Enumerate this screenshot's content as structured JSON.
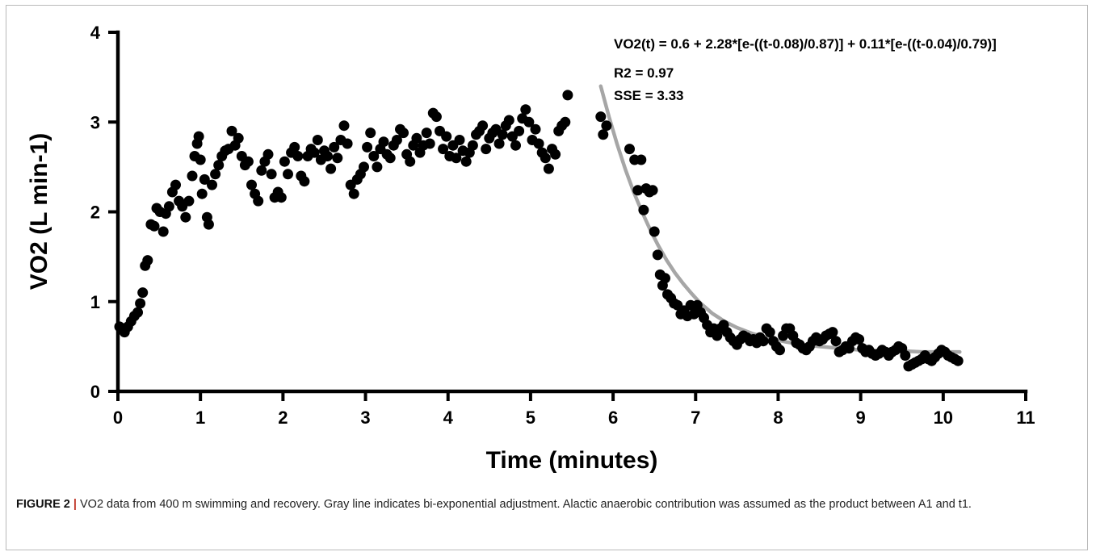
{
  "chart_data": {
    "type": "scatter",
    "title": "",
    "xlabel": "Time (minutes)",
    "ylabel": "VO2 (L min-1)",
    "xlim": [
      0,
      11
    ],
    "ylim": [
      0,
      4
    ],
    "x_ticks": [
      0,
      1,
      2,
      3,
      4,
      5,
      6,
      7,
      8,
      9,
      10,
      11
    ],
    "y_ticks": [
      0,
      1,
      2,
      3,
      4
    ],
    "grid": false,
    "marker_color": "#000000",
    "fit_color": "#a6a6a6",
    "annotation": {
      "equation": "VO2(t) = 0.6 + 2.28*[e-((t-0.08)/0.87)] + 0.11*[e-((t-0.04)/0.79)]",
      "r2": "R2 = 0.97",
      "sse": "SSE = 3.33"
    },
    "series": [
      {
        "type": "scatter",
        "values": [
          [
            0.02,
            0.72
          ],
          [
            0.05,
            0.7
          ],
          [
            0.08,
            0.66
          ],
          [
            0.12,
            0.72
          ],
          [
            0.16,
            0.78
          ],
          [
            0.2,
            0.84
          ],
          [
            0.24,
            0.88
          ],
          [
            0.27,
            0.98
          ],
          [
            0.3,
            1.1
          ],
          [
            0.33,
            1.4
          ],
          [
            0.36,
            1.46
          ],
          [
            0.4,
            1.86
          ],
          [
            0.44,
            1.84
          ],
          [
            0.47,
            2.04
          ],
          [
            0.51,
            2.0
          ],
          [
            0.55,
            1.78
          ],
          [
            0.58,
            1.98
          ],
          [
            0.62,
            2.06
          ],
          [
            0.66,
            2.22
          ],
          [
            0.7,
            2.3
          ],
          [
            0.74,
            2.12
          ],
          [
            0.78,
            2.06
          ],
          [
            0.82,
            1.94
          ],
          [
            0.86,
            2.12
          ],
          [
            0.9,
            2.4
          ],
          [
            0.93,
            2.62
          ],
          [
            0.96,
            2.76
          ],
          [
            0.98,
            2.84
          ],
          [
            1.0,
            2.58
          ],
          [
            1.02,
            2.2
          ],
          [
            1.05,
            2.36
          ],
          [
            1.08,
            1.94
          ],
          [
            1.1,
            1.86
          ],
          [
            1.14,
            2.3
          ],
          [
            1.18,
            2.42
          ],
          [
            1.22,
            2.52
          ],
          [
            1.26,
            2.62
          ],
          [
            1.3,
            2.68
          ],
          [
            1.34,
            2.7
          ],
          [
            1.38,
            2.9
          ],
          [
            1.42,
            2.74
          ],
          [
            1.46,
            2.82
          ],
          [
            1.5,
            2.62
          ],
          [
            1.54,
            2.52
          ],
          [
            1.58,
            2.56
          ],
          [
            1.62,
            2.3
          ],
          [
            1.66,
            2.2
          ],
          [
            1.7,
            2.12
          ],
          [
            1.74,
            2.46
          ],
          [
            1.78,
            2.56
          ],
          [
            1.82,
            2.64
          ],
          [
            1.86,
            2.42
          ],
          [
            1.9,
            2.16
          ],
          [
            1.94,
            2.22
          ],
          [
            1.98,
            2.16
          ],
          [
            2.02,
            2.56
          ],
          [
            2.06,
            2.42
          ],
          [
            2.1,
            2.66
          ],
          [
            2.14,
            2.72
          ],
          [
            2.18,
            2.62
          ],
          [
            2.22,
            2.4
          ],
          [
            2.26,
            2.34
          ],
          [
            2.3,
            2.62
          ],
          [
            2.34,
            2.7
          ],
          [
            2.38,
            2.66
          ],
          [
            2.42,
            2.8
          ],
          [
            2.46,
            2.58
          ],
          [
            2.5,
            2.68
          ],
          [
            2.54,
            2.62
          ],
          [
            2.58,
            2.48
          ],
          [
            2.62,
            2.72
          ],
          [
            2.66,
            2.6
          ],
          [
            2.7,
            2.8
          ],
          [
            2.74,
            2.96
          ],
          [
            2.78,
            2.76
          ],
          [
            2.82,
            2.3
          ],
          [
            2.86,
            2.2
          ],
          [
            2.9,
            2.36
          ],
          [
            2.94,
            2.42
          ],
          [
            2.98,
            2.5
          ],
          [
            3.02,
            2.72
          ],
          [
            3.06,
            2.88
          ],
          [
            3.1,
            2.62
          ],
          [
            3.14,
            2.5
          ],
          [
            3.18,
            2.7
          ],
          [
            3.22,
            2.78
          ],
          [
            3.26,
            2.64
          ],
          [
            3.3,
            2.6
          ],
          [
            3.34,
            2.74
          ],
          [
            3.38,
            2.8
          ],
          [
            3.42,
            2.92
          ],
          [
            3.46,
            2.88
          ],
          [
            3.5,
            2.64
          ],
          [
            3.54,
            2.56
          ],
          [
            3.58,
            2.74
          ],
          [
            3.62,
            2.82
          ],
          [
            3.66,
            2.66
          ],
          [
            3.7,
            2.74
          ],
          [
            3.74,
            2.88
          ],
          [
            3.78,
            2.76
          ],
          [
            3.82,
            3.1
          ],
          [
            3.86,
            3.06
          ],
          [
            3.9,
            2.9
          ],
          [
            3.94,
            2.7
          ],
          [
            3.98,
            2.84
          ],
          [
            4.02,
            2.62
          ],
          [
            4.06,
            2.74
          ],
          [
            4.1,
            2.6
          ],
          [
            4.14,
            2.8
          ],
          [
            4.18,
            2.68
          ],
          [
            4.22,
            2.56
          ],
          [
            4.26,
            2.66
          ],
          [
            4.3,
            2.74
          ],
          [
            4.34,
            2.86
          ],
          [
            4.38,
            2.9
          ],
          [
            4.42,
            2.96
          ],
          [
            4.46,
            2.7
          ],
          [
            4.5,
            2.82
          ],
          [
            4.54,
            2.88
          ],
          [
            4.58,
            2.92
          ],
          [
            4.62,
            2.76
          ],
          [
            4.66,
            2.86
          ],
          [
            4.7,
            2.96
          ],
          [
            4.74,
            3.02
          ],
          [
            4.78,
            2.84
          ],
          [
            4.82,
            2.74
          ],
          [
            4.86,
            2.9
          ],
          [
            4.9,
            3.04
          ],
          [
            4.94,
            3.14
          ],
          [
            4.98,
            3.0
          ],
          [
            5.02,
            2.8
          ],
          [
            5.06,
            2.92
          ],
          [
            5.1,
            2.76
          ],
          [
            5.14,
            2.66
          ],
          [
            5.18,
            2.6
          ],
          [
            5.22,
            2.48
          ],
          [
            5.26,
            2.7
          ],
          [
            5.3,
            2.64
          ],
          [
            5.34,
            2.9
          ],
          [
            5.38,
            2.96
          ],
          [
            5.42,
            3.0
          ],
          [
            5.45,
            3.3
          ],
          [
            5.85,
            3.06
          ],
          [
            5.88,
            2.86
          ],
          [
            5.92,
            2.96
          ],
          [
            6.2,
            2.7
          ],
          [
            6.26,
            2.58
          ],
          [
            6.3,
            2.24
          ],
          [
            6.34,
            2.58
          ],
          [
            6.37,
            2.02
          ],
          [
            6.4,
            2.26
          ],
          [
            6.44,
            2.22
          ],
          [
            6.48,
            2.24
          ],
          [
            6.5,
            1.78
          ],
          [
            6.54,
            1.52
          ],
          [
            6.57,
            1.3
          ],
          [
            6.6,
            1.18
          ],
          [
            6.63,
            1.26
          ],
          [
            6.66,
            1.08
          ],
          [
            6.7,
            1.04
          ],
          [
            6.74,
            0.98
          ],
          [
            6.78,
            0.96
          ],
          [
            6.82,
            0.86
          ],
          [
            6.86,
            0.9
          ],
          [
            6.9,
            0.84
          ],
          [
            6.94,
            0.96
          ],
          [
            6.98,
            0.86
          ],
          [
            7.02,
            0.96
          ],
          [
            7.06,
            0.88
          ],
          [
            7.1,
            0.82
          ],
          [
            7.14,
            0.74
          ],
          [
            7.18,
            0.66
          ],
          [
            7.22,
            0.7
          ],
          [
            7.26,
            0.62
          ],
          [
            7.3,
            0.7
          ],
          [
            7.34,
            0.74
          ],
          [
            7.38,
            0.66
          ],
          [
            7.42,
            0.6
          ],
          [
            7.46,
            0.56
          ],
          [
            7.5,
            0.52
          ],
          [
            7.54,
            0.58
          ],
          [
            7.58,
            0.62
          ],
          [
            7.62,
            0.6
          ],
          [
            7.66,
            0.56
          ],
          [
            7.7,
            0.58
          ],
          [
            7.74,
            0.54
          ],
          [
            7.78,
            0.6
          ],
          [
            7.82,
            0.56
          ],
          [
            7.86,
            0.7
          ],
          [
            7.9,
            0.66
          ],
          [
            7.94,
            0.56
          ],
          [
            7.98,
            0.5
          ],
          [
            8.02,
            0.46
          ],
          [
            8.06,
            0.62
          ],
          [
            8.1,
            0.7
          ],
          [
            8.14,
            0.7
          ],
          [
            8.18,
            0.62
          ],
          [
            8.22,
            0.54
          ],
          [
            8.26,
            0.52
          ],
          [
            8.3,
            0.48
          ],
          [
            8.34,
            0.46
          ],
          [
            8.38,
            0.5
          ],
          [
            8.42,
            0.56
          ],
          [
            8.46,
            0.6
          ],
          [
            8.5,
            0.56
          ],
          [
            8.54,
            0.58
          ],
          [
            8.58,
            0.62
          ],
          [
            8.62,
            0.64
          ],
          [
            8.66,
            0.66
          ],
          [
            8.7,
            0.56
          ],
          [
            8.74,
            0.44
          ],
          [
            8.78,
            0.46
          ],
          [
            8.82,
            0.5
          ],
          [
            8.86,
            0.48
          ],
          [
            8.9,
            0.56
          ],
          [
            8.94,
            0.6
          ],
          [
            8.98,
            0.58
          ],
          [
            9.02,
            0.48
          ],
          [
            9.06,
            0.44
          ],
          [
            9.1,
            0.46
          ],
          [
            9.14,
            0.42
          ],
          [
            9.18,
            0.4
          ],
          [
            9.22,
            0.42
          ],
          [
            9.26,
            0.46
          ],
          [
            9.3,
            0.44
          ],
          [
            9.34,
            0.4
          ],
          [
            9.38,
            0.44
          ],
          [
            9.42,
            0.46
          ],
          [
            9.46,
            0.5
          ],
          [
            9.5,
            0.48
          ],
          [
            9.54,
            0.4
          ],
          [
            9.58,
            0.28
          ],
          [
            9.62,
            0.3
          ],
          [
            9.66,
            0.32
          ],
          [
            9.7,
            0.34
          ],
          [
            9.74,
            0.36
          ],
          [
            9.78,
            0.4
          ],
          [
            9.82,
            0.36
          ],
          [
            9.86,
            0.34
          ],
          [
            9.9,
            0.38
          ],
          [
            9.94,
            0.42
          ],
          [
            9.98,
            0.46
          ],
          [
            10.02,
            0.44
          ],
          [
            10.06,
            0.4
          ],
          [
            10.1,
            0.38
          ],
          [
            10.14,
            0.36
          ],
          [
            10.18,
            0.34
          ]
        ]
      },
      {
        "type": "line",
        "x": [
          5.85,
          5.95,
          6.05,
          6.15,
          6.25,
          6.35,
          6.45,
          6.55,
          6.65,
          6.75,
          6.85,
          6.95,
          7.05,
          7.2,
          7.35,
          7.5,
          7.7,
          7.9,
          8.1,
          8.3,
          8.5,
          8.75,
          9.0,
          9.25,
          9.5,
          9.75,
          10.0,
          10.2
        ],
        "y": [
          3.4,
          3.06,
          2.75,
          2.47,
          2.22,
          2.0,
          1.8,
          1.62,
          1.46,
          1.32,
          1.2,
          1.09,
          0.99,
          0.87,
          0.78,
          0.71,
          0.64,
          0.59,
          0.55,
          0.52,
          0.5,
          0.48,
          0.46,
          0.45,
          0.45,
          0.44,
          0.44,
          0.44
        ]
      }
    ]
  },
  "caption": {
    "label": "FIGURE 2",
    "separator": "|",
    "text": "VO2 data from 400 m swimming and recovery. Gray line indicates bi-exponential adjustment. Alactic anaerobic contribution was assumed as the product between A1 and t1."
  }
}
